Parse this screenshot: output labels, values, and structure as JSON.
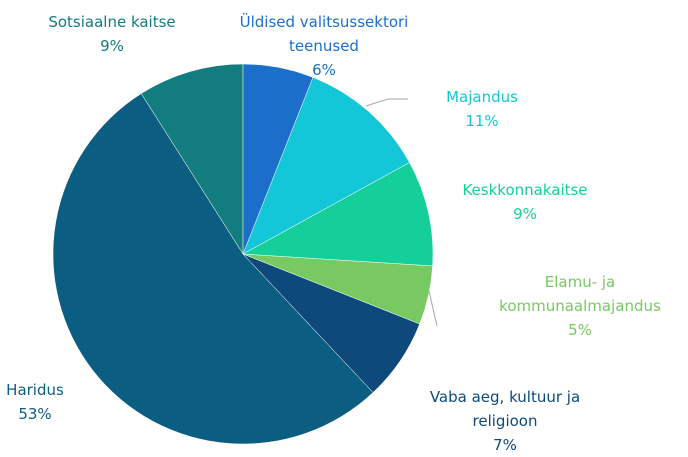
{
  "chart_data": {
    "type": "pie",
    "categories": [
      "Üldised valitsussektori teenused",
      "Majandus",
      "Keskkonnakaitse",
      "Elamu- ja kommunaalmajandus",
      "Vaba aeg, kultuur ja religioon",
      "Haridus",
      "Sotsiaalne kaitse"
    ],
    "values": [
      6,
      11,
      9,
      5,
      7,
      53,
      9
    ],
    "value_labels": [
      "6%",
      "11%",
      "9%",
      "5%",
      "7%",
      "53%",
      "9%"
    ],
    "colors": [
      "#1b6fca",
      "#13c7d9",
      "#15cf9b",
      "#78c961",
      "#0d4a7b",
      "#0b5e81",
      "#137c7e"
    ]
  }
}
